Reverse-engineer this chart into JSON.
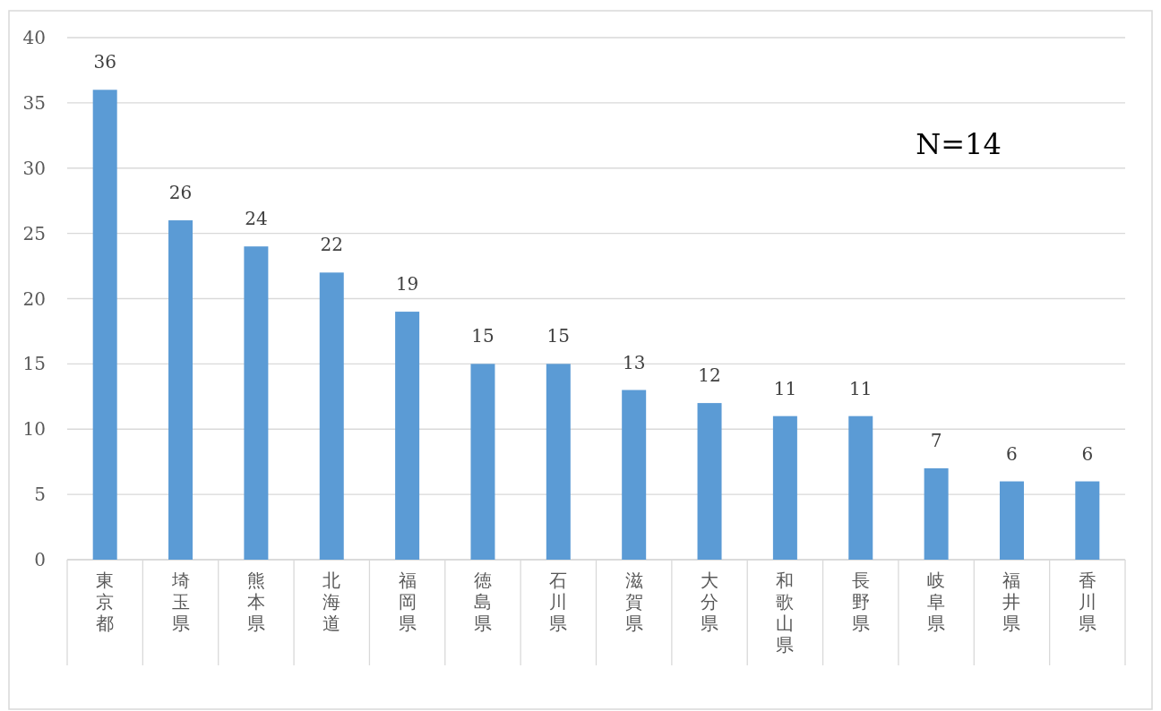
{
  "chart_data": {
    "type": "bar",
    "categories": [
      "東京都",
      "埼玉県",
      "熊本県",
      "北海道",
      "福岡県",
      "徳島県",
      "石川県",
      "滋賀県",
      "大分県",
      "和歌山県",
      "長野県",
      "岐阜県",
      "福井県",
      "香川県"
    ],
    "values": [
      36,
      26,
      24,
      22,
      19,
      15,
      15,
      13,
      12,
      11,
      11,
      7,
      6,
      6
    ],
    "color": "#5b9bd5",
    "ylim": [
      0,
      40
    ],
    "yticks": [
      0,
      5,
      10,
      15,
      20,
      25,
      30,
      35,
      40
    ],
    "grid": "y",
    "data_labels": true,
    "annotations": [
      "N=14"
    ]
  }
}
